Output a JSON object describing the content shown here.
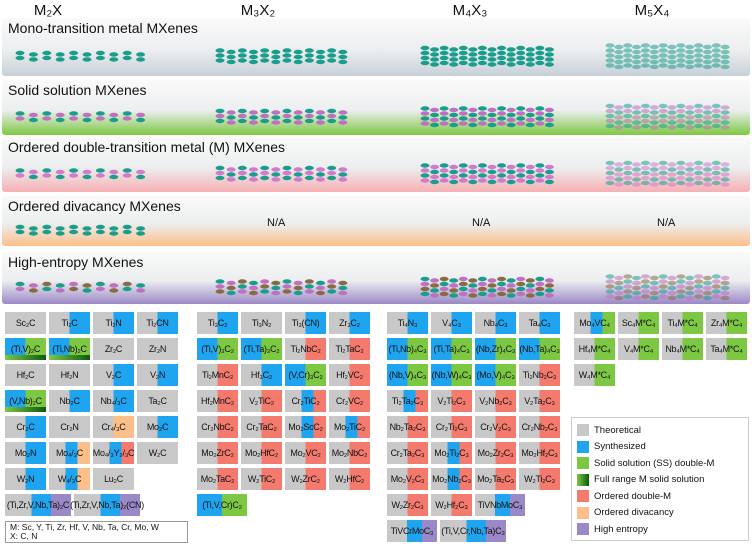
{
  "headers": [
    "M₂X",
    "M₃X₂",
    "M₄X₃",
    "M₅X₄"
  ],
  "bands": [
    {
      "label": "Mono-transition metal MXenes",
      "color": "#c8d0d8",
      "atoms": [
        "#1a9e8c"
      ]
    },
    {
      "label": "Solid solution MXenes",
      "color": "#7dc843",
      "atoms": [
        "#1a9e8c",
        "#c070c0"
      ]
    },
    {
      "label": "Ordered double-transition metal (M) MXenes",
      "color": "#f6b0b4",
      "atoms": [
        "#1a9e8c",
        "#d07ad0"
      ]
    },
    {
      "label": "Ordered divacancy MXenes",
      "color": "#fcbf8a",
      "atoms": [
        "#1a9e8c"
      ],
      "na": "N/A"
    },
    {
      "label": "High-entropy MXenes",
      "color": "#9b88c6",
      "atoms": [
        "#1a9e8c",
        "#c070c0",
        "#8a6a40"
      ]
    }
  ],
  "colors": {
    "g": "#c8c8c8",
    "b": "#1fa5f0",
    "s": "#7dc843",
    "r": "#f47a6e",
    "o": "#fcbf8a",
    "p": "#9b88c6"
  },
  "groups": [
    {
      "rows": [
        [
          {
            "t": "Sc₂C",
            "f": "g"
          },
          {
            "t": "Ti₂C",
            "f": "gb"
          },
          {
            "t": "Ti₂N",
            "f": "gb"
          },
          {
            "t": "Ti₂CN",
            "f": "gb"
          }
        ],
        [
          {
            "t": "(Ti,V)₂C",
            "f": "bsF"
          },
          {
            "t": "(Ti,Nb)₂C",
            "f": "bsF"
          },
          {
            "t": "Zr₂C",
            "f": "g"
          },
          {
            "t": "Zr₂N",
            "f": "g"
          }
        ],
        [
          {
            "t": "Hf₂C",
            "f": "g"
          },
          {
            "t": "Hf₂N",
            "f": "g"
          },
          {
            "t": "V₂C",
            "f": "gb"
          },
          {
            "t": "V₂N",
            "f": "gb"
          }
        ],
        [
          {
            "t": "(V,Nb)₂C",
            "f": "bsF"
          },
          {
            "t": "Nb₂C",
            "f": "gb"
          },
          {
            "t": "Nb₄/₃C",
            "f": "gb"
          },
          {
            "t": "Ta₂C",
            "f": "g"
          }
        ],
        [
          {
            "t": "Cr₂C",
            "f": "gb"
          },
          {
            "t": "Cr₂N",
            "f": "g"
          },
          {
            "t": "Cr₄/₃C",
            "f": "go"
          },
          {
            "t": "Mo₂C",
            "f": "gb"
          }
        ],
        [
          {
            "t": "Mo₂N",
            "f": "gb"
          },
          {
            "t": "Mo₄/₃C",
            "f": "gbo"
          },
          {
            "t": "Mo₄/₃Y₂/₃C",
            "f": "gbr"
          },
          {
            "t": "W₂C",
            "f": "g"
          }
        ],
        [
          {
            "t": "W₂N",
            "f": "gb"
          },
          {
            "t": "W₄/₃C",
            "f": "gbo"
          },
          {
            "t": "Lu₂C",
            "f": "g"
          }
        ],
        [
          {
            "t": "(Ti,Zr,V,Nb,Ta)₂C",
            "f": "gbp",
            "w": 1
          },
          {
            "t": "(Ti,Zr,V,Nb,Ta)₂(CN)",
            "f": "gbp",
            "w": 1
          }
        ]
      ]
    },
    {
      "rows": [
        [
          {
            "t": "Ti₃C₂",
            "f": "gb"
          },
          {
            "t": "Ti₃N₂",
            "f": "g"
          },
          {
            "t": "Ti₃(CN)",
            "f": "gb"
          },
          {
            "t": "Zr₃C₂",
            "f": "gb"
          }
        ],
        [
          {
            "t": "(Ti,V)₃C₂",
            "f": "bs"
          },
          {
            "t": "(Ti,Ta)₃C₂",
            "f": "bs"
          },
          {
            "t": "Ti₂NbC₂",
            "f": "gr"
          },
          {
            "t": "Ti₂TaC₂",
            "f": "gr"
          }
        ],
        [
          {
            "t": "Ti₂MnC₂",
            "f": "gr"
          },
          {
            "t": "Hf₃C₂",
            "f": "gb"
          },
          {
            "t": "(V,Cr)₃C₂",
            "f": "bs"
          },
          {
            "t": "Hf₂VC₂",
            "f": "gr"
          }
        ],
        [
          {
            "t": "Hf₂MnC₂",
            "f": "gr"
          },
          {
            "t": "V₂TiC₂",
            "f": "gr"
          },
          {
            "t": "Cr₂TiC₂",
            "f": "gbr"
          },
          {
            "t": "Cr₂VC₂",
            "f": "gr"
          }
        ],
        [
          {
            "t": "Cr₂NbC₂",
            "f": "gr"
          },
          {
            "t": "Cr₂TaC₂",
            "f": "gr"
          },
          {
            "t": "Mo₂ScC₂",
            "f": "gbr"
          },
          {
            "t": "Mo₂TiC₂",
            "f": "gbr"
          }
        ],
        [
          {
            "t": "Mo₂ZrC₂",
            "f": "gr"
          },
          {
            "t": "Mo₂HfC₂",
            "f": "gr"
          },
          {
            "t": "Mo₂VC₂",
            "f": "gr"
          },
          {
            "t": "Mo₂NbC₂",
            "f": "gr"
          }
        ],
        [
          {
            "t": "Mo₂TaC₂",
            "f": "gr"
          },
          {
            "t": "W₂TiC₂",
            "f": "gr"
          },
          {
            "t": "W₂ZrC₂",
            "f": "gr"
          },
          {
            "t": "W₂HfC₂",
            "f": "gr"
          }
        ],
        [
          {
            "t": "(Ti,V,Cr)C₂",
            "f": "bs",
            "w": 2
          }
        ]
      ]
    },
    {
      "rows": [
        [
          {
            "t": "Ti₄N₃",
            "f": "gb"
          },
          {
            "t": "V₄C₃",
            "f": "gb"
          },
          {
            "t": "Nb₄C₃",
            "f": "gb"
          },
          {
            "t": "Ta₄C₃",
            "f": "gb"
          }
        ],
        [
          {
            "t": "(Ti,Nb)₄C₃",
            "f": "bs"
          },
          {
            "t": "(Ti,Ta)₄C₃",
            "f": "bs"
          },
          {
            "t": "(Nb,Zr)₄C₃",
            "f": "bs"
          },
          {
            "t": "(Nb,Ta)₄C₃",
            "f": "bs"
          }
        ],
        [
          {
            "t": "(Nb,V)₄C₃",
            "f": "bs"
          },
          {
            "t": "(Nb,W)₄C₃",
            "f": "bs"
          },
          {
            "t": "(Mo,V)₄C₃",
            "f": "bs"
          },
          {
            "t": "Ti₂Nb₂C₃",
            "f": "gr"
          }
        ],
        [
          {
            "t": "Ti₂Ta₂C₃",
            "f": "gbr"
          },
          {
            "t": "V₂Ti₂C₃",
            "f": "gr"
          },
          {
            "t": "V₂Nb₂C₃",
            "f": "gr"
          },
          {
            "t": "V₂Ta₂C₃",
            "f": "gr"
          }
        ],
        [
          {
            "t": "Nb₂Ta₂C₃",
            "f": "gr"
          },
          {
            "t": "Cr₂Ti₂C₃",
            "f": "gr"
          },
          {
            "t": "Cr₂V₂C₃",
            "f": "gr"
          },
          {
            "t": "Cr₂Nb₂C₃",
            "f": "gr"
          }
        ],
        [
          {
            "t": "Cr₂Ta₂C₃",
            "f": "gr"
          },
          {
            "t": "Mo₂Ti₂C₃",
            "f": "gbr"
          },
          {
            "t": "Mo₂Zr₂C₃",
            "f": "gr"
          },
          {
            "t": "Mo₂Hf₂C₃",
            "f": "gr"
          }
        ],
        [
          {
            "t": "Mo₂V₂C₃",
            "f": "gr"
          },
          {
            "t": "Mo₂Nb₂C₃",
            "f": "gbr"
          },
          {
            "t": "Mo₂Ta₂C₃",
            "f": "gr"
          },
          {
            "t": "W₂Ti₂C₃",
            "f": "gr"
          }
        ],
        [
          {
            "t": "W₂Zr₂C₃",
            "f": "gr"
          },
          {
            "t": "W₂Hf₂C₃",
            "f": "gr"
          },
          {
            "t": "TiVNbMoC₃",
            "f": "gbp",
            "w": 2
          }
        ],
        [
          {
            "t": "TiVCrMoC₃",
            "f": "gbp",
            "w": 2
          },
          {
            "t": "(Ti,V,Cr,Nb,Ta)C₃",
            "f": "gbp",
            "w": 1
          }
        ]
      ]
    },
    {
      "rows": [
        [
          {
            "t": "Mo₄VC₄",
            "f": "gbs"
          },
          {
            "t": "Sc₄M*C₄",
            "f": "gs"
          },
          {
            "t": "Ti₄M*C₄",
            "f": "gs"
          },
          {
            "t": "Zr₄M*C₄",
            "f": "gs"
          }
        ],
        [
          {
            "t": "Hf₄M*C₄",
            "f": "gs"
          },
          {
            "t": "V₄M*C₄",
            "f": "gs"
          },
          {
            "t": "Nb₄M*C₄",
            "f": "gs"
          },
          {
            "t": "Ta₄M*C₄",
            "f": "gs"
          }
        ],
        [
          {
            "t": "W₄M*C₄",
            "f": "gs"
          }
        ]
      ]
    }
  ],
  "note": {
    "line1": "M: Sc, Y, Ti, Zr, Hf, V, Nb, Ta, Cr, Mo, W",
    "line2": "X: C, N"
  },
  "legend": [
    {
      "label": "Theoretical",
      "c": "g"
    },
    {
      "label": "Synthesized",
      "c": "b"
    },
    {
      "label": "Solid solution (SS) double-M",
      "c": "s"
    },
    {
      "label": "Full range M solid solution",
      "c": "F"
    },
    {
      "label": "Ordered double-M",
      "c": "r"
    },
    {
      "label": "Ordered divacancy",
      "c": "o"
    },
    {
      "label": "High entropy",
      "c": "p"
    }
  ]
}
